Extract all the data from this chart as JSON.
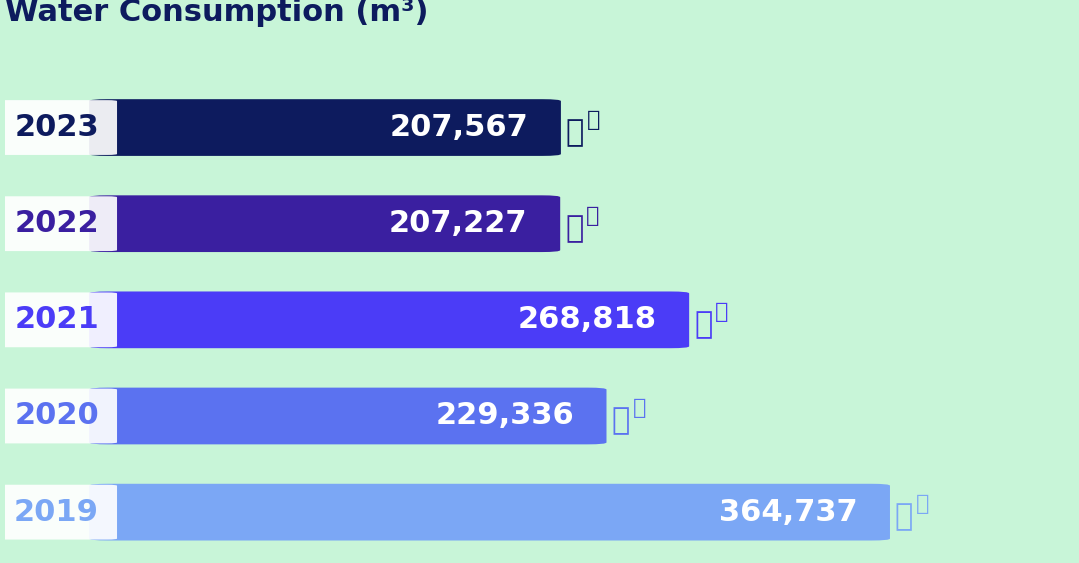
{
  "title": "Water Consumption (m³)",
  "title_color": "#0d1b5e",
  "background_color": "#c8f5d8",
  "years": [
    "2023",
    "2022",
    "2021",
    "2020",
    "2019"
  ],
  "values": [
    207567,
    207227,
    268818,
    229336,
    364737
  ],
  "labels": [
    "207,567",
    "207,227",
    "268,818",
    "229,336",
    "364,737"
  ],
  "bar_colors": [
    "#0d1b5e",
    "#3a1fa0",
    "#4b3cf7",
    "#5b72f0",
    "#7ba7f5"
  ],
  "year_colors": [
    "#0d1b5e",
    "#3a1fa0",
    "#4b3cf7",
    "#5b72f0",
    "#7ba7f5"
  ],
  "max_value": 364737,
  "bar_height": 0.55,
  "label_fontsize": 22,
  "year_fontsize": 22,
  "title_fontsize": 22
}
